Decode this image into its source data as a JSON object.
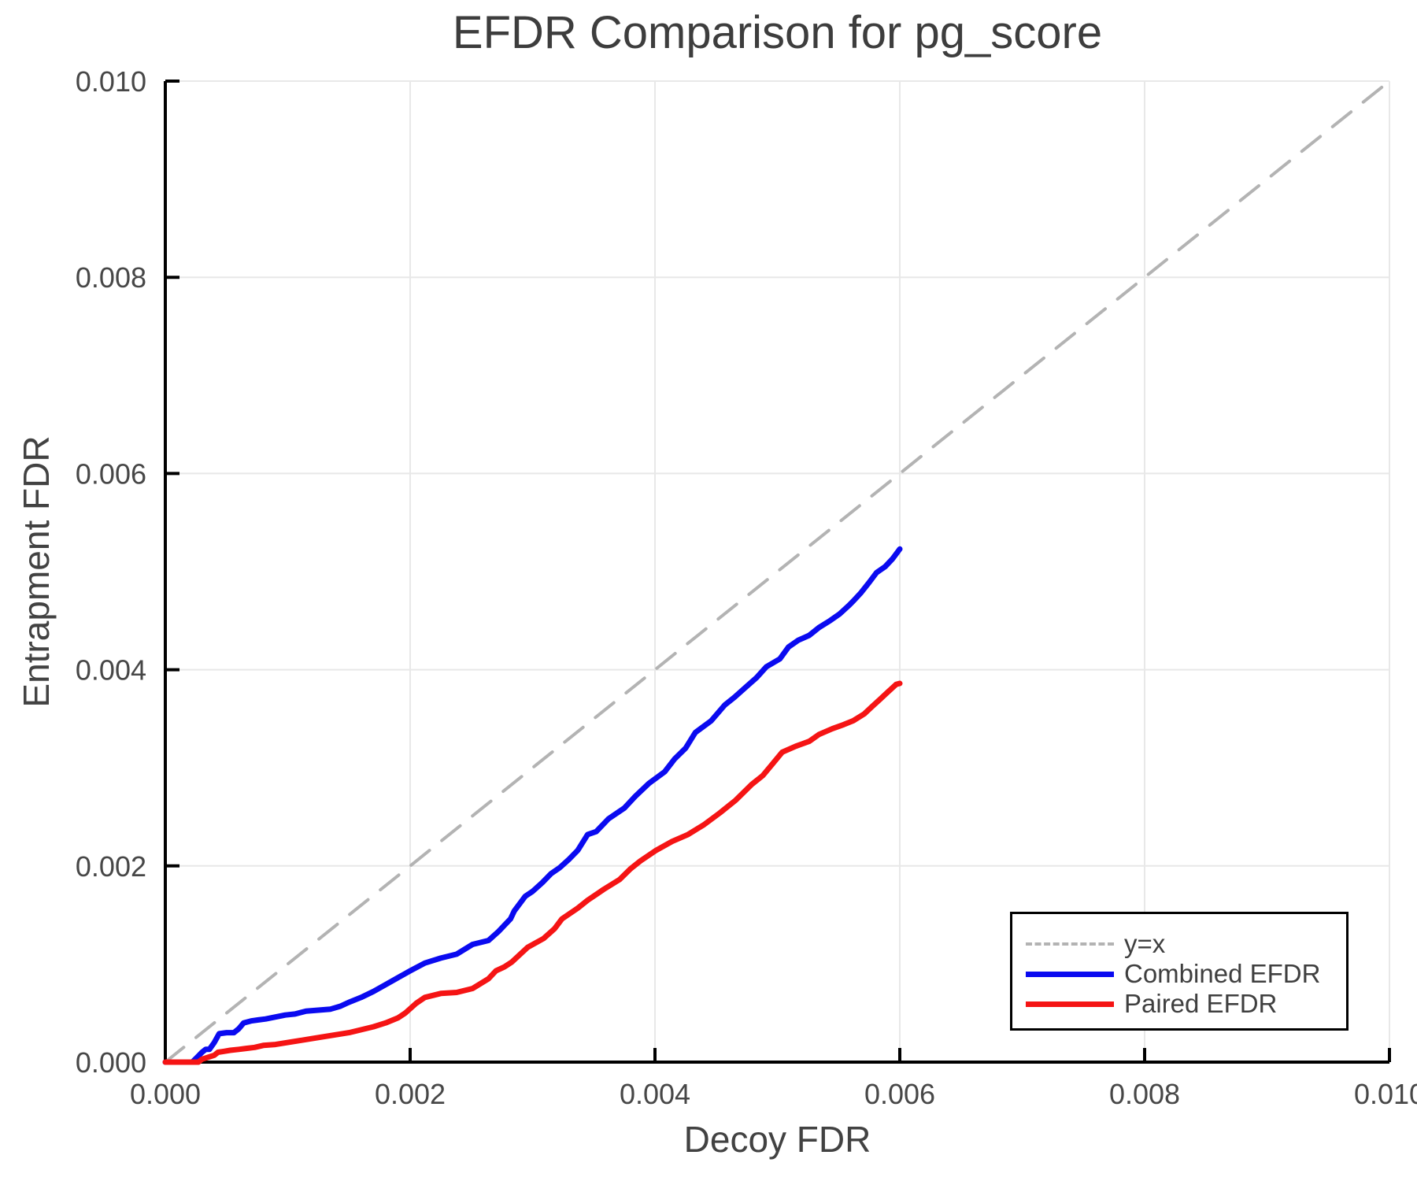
{
  "page": {
    "background": "#ffffff"
  },
  "chart_data": {
    "type": "line",
    "title": "EFDR Comparison for pg_score",
    "xlabel": "Decoy FDR",
    "ylabel": "Entrapment FDR",
    "xlim": [
      0.0,
      0.01
    ],
    "ylim": [
      0.0,
      0.01
    ],
    "xticks": [
      0.0,
      0.002,
      0.004,
      0.006,
      0.008,
      0.01
    ],
    "yticks": [
      0.0,
      0.002,
      0.004,
      0.006,
      0.008,
      0.01
    ],
    "tick_decimals": 3,
    "grid": true,
    "grid_color": "#e8e8e8",
    "axis_color": "#000000",
    "text_color": "#474747",
    "legend_position": "lower right",
    "series": [
      {
        "name": "y=x",
        "slug": "identity-line",
        "color": "#b3b3b3",
        "style": "dashed",
        "width": 4,
        "points": [
          [
            0.0,
            0.0
          ],
          [
            0.01,
            0.01
          ]
        ]
      },
      {
        "name": "Combined EFDR",
        "slug": "combined-efdr-line",
        "color": "#0a0af0",
        "style": "solid",
        "width": 7,
        "points": [
          [
            0.0,
            0.0
          ],
          [
            0.00022,
            0.0
          ],
          [
            0.00026,
            5e-05
          ],
          [
            0.0003,
            0.0001
          ],
          [
            0.00033,
            0.00013
          ],
          [
            0.00036,
            0.00013
          ],
          [
            0.0004,
            0.0002
          ],
          [
            0.00044,
            0.00029
          ],
          [
            0.0005,
            0.0003
          ],
          [
            0.00056,
            0.0003
          ],
          [
            0.0006,
            0.00034
          ],
          [
            0.00064,
            0.0004
          ],
          [
            0.0007,
            0.00042
          ],
          [
            0.00076,
            0.00043
          ],
          [
            0.00082,
            0.00044
          ],
          [
            0.0009,
            0.00046
          ],
          [
            0.00098,
            0.00048
          ],
          [
            0.00106,
            0.00049
          ],
          [
            0.00115,
            0.00052
          ],
          [
            0.00125,
            0.00053
          ],
          [
            0.00135,
            0.00054
          ],
          [
            0.00143,
            0.00057
          ],
          [
            0.0015,
            0.00061
          ],
          [
            0.0016,
            0.00066
          ],
          [
            0.0017,
            0.00072
          ],
          [
            0.0018,
            0.00079
          ],
          [
            0.0019,
            0.00086
          ],
          [
            0.002,
            0.00093
          ],
          [
            0.00212,
            0.00101
          ],
          [
            0.00225,
            0.00106
          ],
          [
            0.00238,
            0.0011
          ],
          [
            0.00251,
            0.0012
          ],
          [
            0.00264,
            0.00124
          ],
          [
            0.00272,
            0.00133
          ],
          [
            0.00282,
            0.00146
          ],
          [
            0.00285,
            0.00154
          ],
          [
            0.00294,
            0.00169
          ],
          [
            0.003,
            0.00174
          ],
          [
            0.00308,
            0.00183
          ],
          [
            0.00315,
            0.00192
          ],
          [
            0.00322,
            0.00198
          ],
          [
            0.0033,
            0.00207
          ],
          [
            0.00337,
            0.00216
          ],
          [
            0.00345,
            0.00232
          ],
          [
            0.00352,
            0.00235
          ],
          [
            0.00362,
            0.00248
          ],
          [
            0.00375,
            0.00259
          ],
          [
            0.00384,
            0.00271
          ],
          [
            0.00395,
            0.00284
          ],
          [
            0.00408,
            0.00296
          ],
          [
            0.00416,
            0.00309
          ],
          [
            0.00425,
            0.0032
          ],
          [
            0.00433,
            0.00336
          ],
          [
            0.00446,
            0.00348
          ],
          [
            0.00457,
            0.00364
          ],
          [
            0.00465,
            0.00372
          ],
          [
            0.00474,
            0.00382
          ],
          [
            0.00483,
            0.00392
          ],
          [
            0.00491,
            0.00403
          ],
          [
            0.00502,
            0.00411
          ],
          [
            0.00509,
            0.00423
          ],
          [
            0.00517,
            0.0043
          ],
          [
            0.00526,
            0.00435
          ],
          [
            0.00534,
            0.00443
          ],
          [
            0.00543,
            0.0045
          ],
          [
            0.00551,
            0.00457
          ],
          [
            0.00558,
            0.00465
          ],
          [
            0.00562,
            0.0047
          ],
          [
            0.00568,
            0.00478
          ],
          [
            0.00575,
            0.00489
          ],
          [
            0.00581,
            0.00499
          ],
          [
            0.00588,
            0.00505
          ],
          [
            0.00594,
            0.00513
          ],
          [
            0.006,
            0.00523
          ]
        ]
      },
      {
        "name": "Paired EFDR",
        "slug": "paired-efdr-line",
        "color": "#f51414",
        "style": "solid",
        "width": 7,
        "points": [
          [
            0.0,
            0.0
          ],
          [
            0.00027,
            0.0
          ],
          [
            0.0003,
            3e-05
          ],
          [
            0.00035,
            5e-05
          ],
          [
            0.0004,
            7e-05
          ],
          [
            0.00043,
            0.0001
          ],
          [
            0.00048,
            0.00011
          ],
          [
            0.00053,
            0.00012
          ],
          [
            0.0006,
            0.00013
          ],
          [
            0.00066,
            0.00014
          ],
          [
            0.00073,
            0.00015
          ],
          [
            0.0008,
            0.00017
          ],
          [
            0.0009,
            0.00018
          ],
          [
            0.001,
            0.0002
          ],
          [
            0.0011,
            0.00022
          ],
          [
            0.0012,
            0.00024
          ],
          [
            0.0013,
            0.00026
          ],
          [
            0.0014,
            0.00028
          ],
          [
            0.0015,
            0.0003
          ],
          [
            0.0016,
            0.00033
          ],
          [
            0.0017,
            0.00036
          ],
          [
            0.0018,
            0.0004
          ],
          [
            0.0019,
            0.00045
          ],
          [
            0.00196,
            0.0005
          ],
          [
            0.00205,
            0.0006
          ],
          [
            0.00212,
            0.00066
          ],
          [
            0.00225,
            0.0007
          ],
          [
            0.00238,
            0.00071
          ],
          [
            0.00251,
            0.00075
          ],
          [
            0.00264,
            0.00085
          ],
          [
            0.0027,
            0.00093
          ],
          [
            0.00277,
            0.00097
          ],
          [
            0.00283,
            0.00102
          ],
          [
            0.00296,
            0.00117
          ],
          [
            0.00309,
            0.00126
          ],
          [
            0.00318,
            0.00136
          ],
          [
            0.00324,
            0.00146
          ],
          [
            0.00337,
            0.00157
          ],
          [
            0.00345,
            0.00165
          ],
          [
            0.00358,
            0.00176
          ],
          [
            0.00371,
            0.00186
          ],
          [
            0.0038,
            0.00197
          ],
          [
            0.00388,
            0.00205
          ],
          [
            0.00401,
            0.00216
          ],
          [
            0.00414,
            0.00225
          ],
          [
            0.00427,
            0.00232
          ],
          [
            0.0044,
            0.00242
          ],
          [
            0.00453,
            0.00254
          ],
          [
            0.00466,
            0.00267
          ],
          [
            0.00479,
            0.00283
          ],
          [
            0.00488,
            0.00292
          ],
          [
            0.00496,
            0.00304
          ],
          [
            0.00504,
            0.00316
          ],
          [
            0.00515,
            0.00322
          ],
          [
            0.00526,
            0.00327
          ],
          [
            0.00534,
            0.00334
          ],
          [
            0.00545,
            0.0034
          ],
          [
            0.00554,
            0.00344
          ],
          [
            0.00562,
            0.00348
          ],
          [
            0.00571,
            0.00355
          ],
          [
            0.00577,
            0.00362
          ],
          [
            0.00584,
            0.0037
          ],
          [
            0.0059,
            0.00377
          ],
          [
            0.00597,
            0.00385
          ],
          [
            0.006,
            0.00386
          ]
        ]
      }
    ]
  }
}
